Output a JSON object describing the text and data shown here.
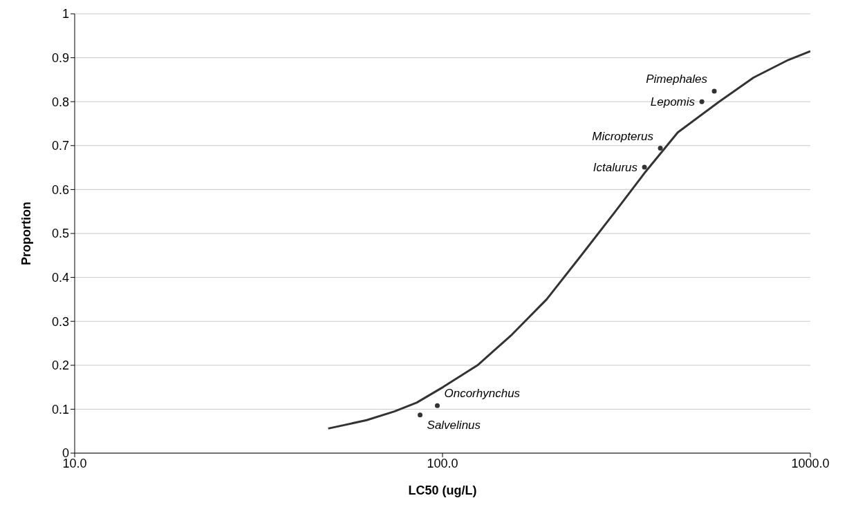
{
  "chart_data": {
    "type": "scatter",
    "xlabel": "LC50 (ug/L)",
    "ylabel": "Proportion",
    "log": "x",
    "grid": "y",
    "xlim": [
      10,
      1000
    ],
    "xticks": [
      {
        "value": 10,
        "label": "10.0"
      },
      {
        "value": 100,
        "label": "100.0"
      },
      {
        "value": 1000,
        "label": "1000.0"
      }
    ],
    "ylim": [
      0,
      1
    ],
    "yticks": [
      0,
      0.1,
      0.2,
      0.3,
      0.4,
      0.5,
      0.6,
      0.7,
      0.8,
      0.9,
      1
    ],
    "series": [
      {
        "type": "line",
        "color": "#333333",
        "marker": "none",
        "x": [
          48.9,
          62.2,
          74,
          85.1,
          100.2,
          124.5,
          154.5,
          191.9,
          238.3,
          295,
          356,
          436,
          565,
          701,
          871,
          1000
        ],
        "values": [
          0.056,
          0.075,
          0.095,
          0.115,
          0.15,
          0.2,
          0.27,
          0.35,
          0.45,
          0.55,
          0.64,
          0.73,
          0.8,
          0.855,
          0.895,
          0.915
        ]
      },
      {
        "color": "#333333",
        "marker": "circle",
        "x": [
          86.9,
          96.8,
          354,
          391,
          507,
          548
        ],
        "values": [
          0.087,
          0.108,
          0.651,
          0.694,
          0.8,
          0.824
        ]
      }
    ],
    "annotations": [
      {
        "text": "Salvelinus",
        "x": 86.9,
        "y": 0.087
      },
      {
        "text": "Oncorhynchus",
        "x": 96.8,
        "y": 0.108
      },
      {
        "text": "Ictalurus",
        "x": 354,
        "y": 0.651
      },
      {
        "text": "Micropterus",
        "x": 391,
        "y": 0.694
      },
      {
        "text": "Lepomis",
        "x": 507,
        "y": 0.8
      },
      {
        "text": "Pimephales",
        "x": 548,
        "y": 0.824
      }
    ]
  }
}
